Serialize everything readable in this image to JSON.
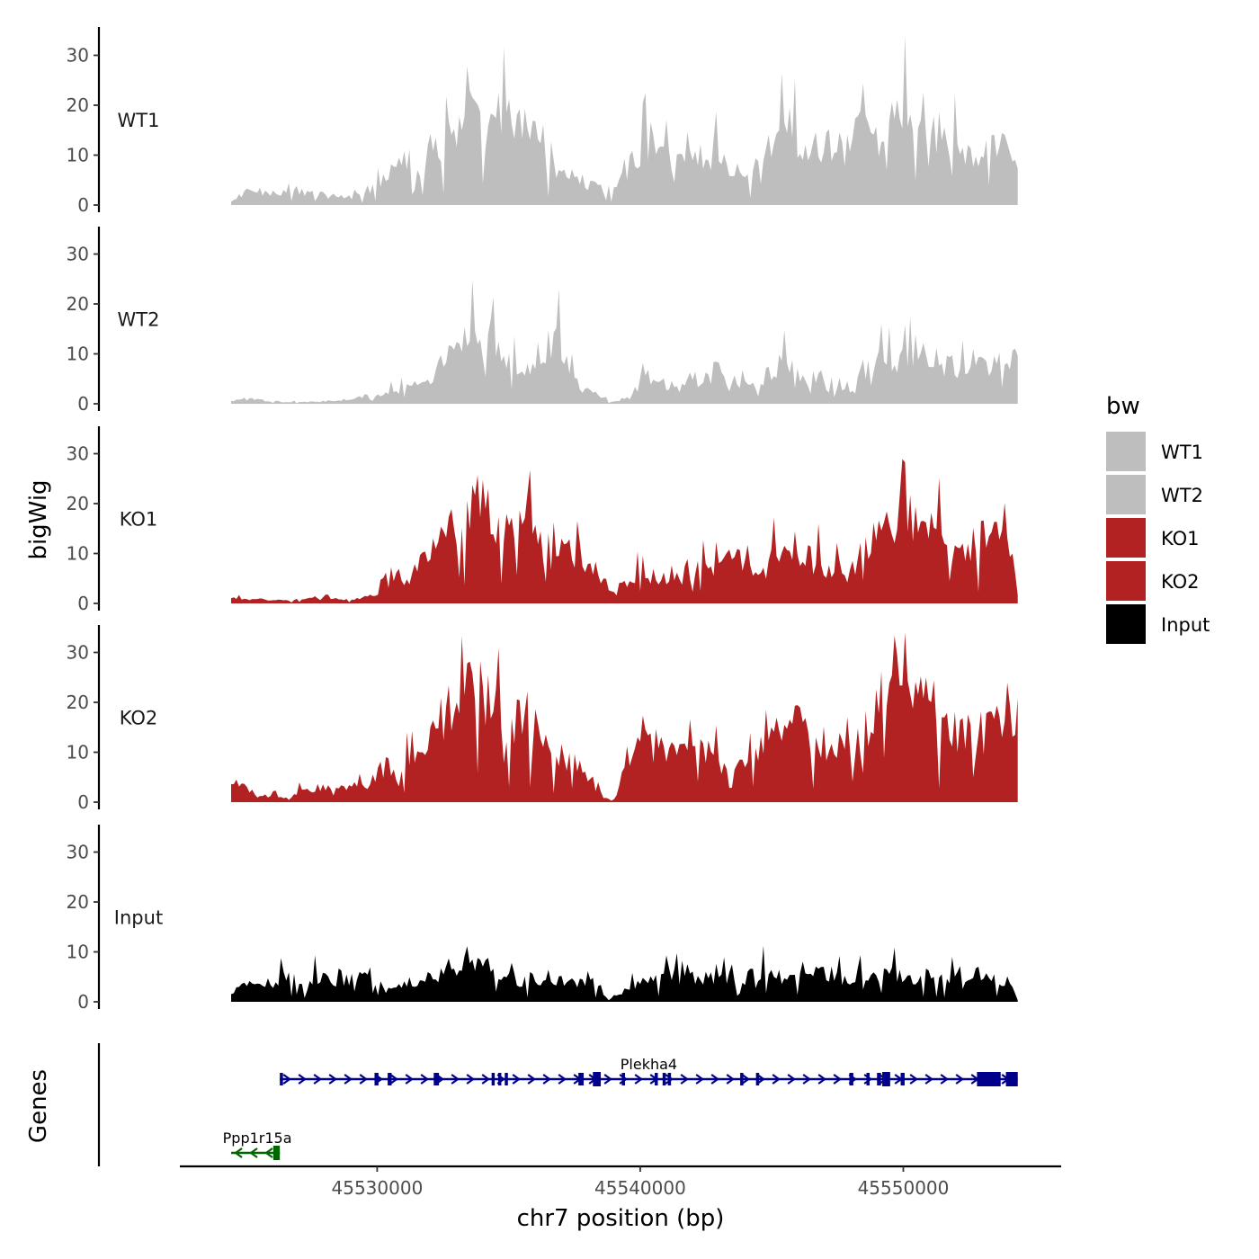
{
  "chart_data": {
    "type": "area",
    "chromosome": "chr7",
    "xlabel": "chr7 position (bp)",
    "ylabel": "bigWig",
    "genes_label": "Genes",
    "xlim": [
      45522500,
      45556000
    ],
    "data_x_range": [
      45524450,
      45554350
    ],
    "xticks": [
      45530000,
      45540000,
      45550000
    ],
    "xtick_labels": [
      "45530000",
      "45540000",
      "45550000"
    ],
    "ylim": [
      0,
      36
    ],
    "yticks": [
      0,
      10,
      20,
      30
    ],
    "ytick_labels": [
      "0",
      "10",
      "20",
      "30"
    ],
    "legend": {
      "title": "bw",
      "position": "right",
      "entries": [
        {
          "label": "WT1",
          "color": "#BEBEBE"
        },
        {
          "label": "WT2",
          "color": "#BEBEBE"
        },
        {
          "label": "KO1",
          "color": "#B22222"
        },
        {
          "label": "KO2",
          "color": "#B22222"
        },
        {
          "label": "Input",
          "color": "#000000"
        }
      ]
    },
    "series": [
      {
        "name": "WT1",
        "color": "#BEBEBE",
        "anchors": [
          [
            45524450,
            0.5
          ],
          [
            45525000,
            3
          ],
          [
            45526000,
            2.5
          ],
          [
            45527000,
            3
          ],
          [
            45528000,
            2
          ],
          [
            45529000,
            1.5
          ],
          [
            45530000,
            4
          ],
          [
            45530500,
            8
          ],
          [
            45531000,
            11
          ],
          [
            45531500,
            7
          ],
          [
            45532000,
            11
          ],
          [
            45532500,
            13
          ],
          [
            45533000,
            16
          ],
          [
            45533500,
            24
          ],
          [
            45533800,
            16
          ],
          [
            45534200,
            13
          ],
          [
            45534600,
            18
          ],
          [
            45535200,
            17
          ],
          [
            45535800,
            15
          ],
          [
            45536300,
            13
          ],
          [
            45536800,
            8
          ],
          [
            45537500,
            6
          ],
          [
            45538000,
            4
          ],
          [
            45538600,
            5
          ],
          [
            45539000,
            2
          ],
          [
            45539600,
            8
          ],
          [
            45540200,
            12
          ],
          [
            45541000,
            9
          ],
          [
            45541800,
            10
          ],
          [
            45542600,
            11
          ],
          [
            45543400,
            8
          ],
          [
            45544200,
            6
          ],
          [
            45545000,
            12
          ],
          [
            45545600,
            16
          ],
          [
            45546200,
            11
          ],
          [
            45547000,
            12
          ],
          [
            45547800,
            11
          ],
          [
            45548400,
            15
          ],
          [
            45549000,
            12
          ],
          [
            45549600,
            17
          ],
          [
            45550100,
            22
          ],
          [
            45550600,
            19
          ],
          [
            45551200,
            16
          ],
          [
            45551800,
            13
          ],
          [
            45552400,
            10
          ],
          [
            45553000,
            10
          ],
          [
            45553600,
            12
          ],
          [
            45554350,
            11
          ]
        ]
      },
      {
        "name": "WT2",
        "color": "#BEBEBE",
        "anchors": [
          [
            45524450,
            0.5
          ],
          [
            45525000,
            1
          ],
          [
            45526000,
            0.5
          ],
          [
            45527000,
            0.3
          ],
          [
            45528000,
            0.5
          ],
          [
            45529000,
            1
          ],
          [
            45530000,
            2
          ],
          [
            45530500,
            3
          ],
          [
            45531000,
            3
          ],
          [
            45532000,
            5
          ],
          [
            45532500,
            8
          ],
          [
            45533000,
            12
          ],
          [
            45533500,
            15
          ],
          [
            45534000,
            12
          ],
          [
            45534600,
            11
          ],
          [
            45535200,
            9
          ],
          [
            45535800,
            7
          ],
          [
            45536300,
            12
          ],
          [
            45536800,
            13
          ],
          [
            45537300,
            9
          ],
          [
            45537800,
            3
          ],
          [
            45538400,
            2
          ],
          [
            45538800,
            0.3
          ],
          [
            45539200,
            0.5
          ],
          [
            45539800,
            3
          ],
          [
            45540300,
            6
          ],
          [
            45541000,
            4
          ],
          [
            45541800,
            5
          ],
          [
            45542600,
            5
          ],
          [
            45543400,
            5
          ],
          [
            45544200,
            3
          ],
          [
            45544800,
            6
          ],
          [
            45545600,
            9
          ],
          [
            45546200,
            5
          ],
          [
            45547000,
            6
          ],
          [
            45547600,
            4
          ],
          [
            45548200,
            3
          ],
          [
            45548800,
            8
          ],
          [
            45549500,
            9
          ],
          [
            45550000,
            9
          ],
          [
            45550500,
            11
          ],
          [
            45551000,
            11
          ],
          [
            45551600,
            8
          ],
          [
            45552200,
            7
          ],
          [
            45552800,
            9
          ],
          [
            45553400,
            8
          ],
          [
            45554350,
            9
          ]
        ]
      },
      {
        "name": "KO1",
        "color": "#B22222",
        "anchors": [
          [
            45524450,
            1
          ],
          [
            45525000,
            1
          ],
          [
            45526000,
            0.7
          ],
          [
            45527000,
            0.8
          ],
          [
            45528000,
            1
          ],
          [
            45529000,
            0.8
          ],
          [
            45530000,
            2
          ],
          [
            45530300,
            6
          ],
          [
            45530800,
            7
          ],
          [
            45531200,
            4
          ],
          [
            45531600,
            8
          ],
          [
            45532200,
            11
          ],
          [
            45532700,
            14
          ],
          [
            45533200,
            19
          ],
          [
            45533700,
            22
          ],
          [
            45534200,
            19
          ],
          [
            45534600,
            17
          ],
          [
            45535000,
            18
          ],
          [
            45535500,
            20
          ],
          [
            45536000,
            16
          ],
          [
            45536500,
            8
          ],
          [
            45537000,
            10
          ],
          [
            45537500,
            11
          ],
          [
            45538000,
            8
          ],
          [
            45538500,
            6
          ],
          [
            45539000,
            2
          ],
          [
            45539500,
            4
          ],
          [
            45540000,
            6
          ],
          [
            45540600,
            6
          ],
          [
            45541200,
            5
          ],
          [
            45541800,
            6
          ],
          [
            45542600,
            8
          ],
          [
            45543400,
            9
          ],
          [
            45544000,
            8
          ],
          [
            45544600,
            6
          ],
          [
            45545200,
            10
          ],
          [
            45545800,
            13
          ],
          [
            45546500,
            9
          ],
          [
            45547000,
            8
          ],
          [
            45547500,
            7
          ],
          [
            45548000,
            6
          ],
          [
            45548500,
            13
          ],
          [
            45549000,
            15
          ],
          [
            45549600,
            16
          ],
          [
            45550000,
            17
          ],
          [
            45550500,
            18
          ],
          [
            45551000,
            16
          ],
          [
            45551700,
            13
          ],
          [
            45552200,
            10
          ],
          [
            45552800,
            14
          ],
          [
            45553400,
            14
          ],
          [
            45554000,
            16
          ],
          [
            45554350,
            2
          ]
        ]
      },
      {
        "name": "KO2",
        "color": "#B22222",
        "anchors": [
          [
            45524450,
            4
          ],
          [
            45525000,
            3
          ],
          [
            45525500,
            1
          ],
          [
            45526000,
            1.5
          ],
          [
            45526600,
            0.5
          ],
          [
            45527200,
            3
          ],
          [
            45528000,
            3
          ],
          [
            45529000,
            3
          ],
          [
            45529800,
            4
          ],
          [
            45530300,
            8
          ],
          [
            45530800,
            4
          ],
          [
            45531300,
            11
          ],
          [
            45532000,
            15
          ],
          [
            45532500,
            18
          ],
          [
            45533000,
            20
          ],
          [
            45533500,
            23
          ],
          [
            45534000,
            22
          ],
          [
            45534600,
            19
          ],
          [
            45535200,
            18
          ],
          [
            45535800,
            17
          ],
          [
            45536400,
            12
          ],
          [
            45537000,
            10
          ],
          [
            45537600,
            8
          ],
          [
            45538200,
            4
          ],
          [
            45538600,
            1
          ],
          [
            45539000,
            0.5
          ],
          [
            45539400,
            6
          ],
          [
            45540000,
            12
          ],
          [
            45540600,
            10
          ],
          [
            45541200,
            11
          ],
          [
            45541800,
            10
          ],
          [
            45542600,
            10
          ],
          [
            45543400,
            7
          ],
          [
            45544000,
            8
          ],
          [
            45544600,
            11
          ],
          [
            45545200,
            14
          ],
          [
            45545800,
            18
          ],
          [
            45546400,
            13
          ],
          [
            45547000,
            12
          ],
          [
            45547800,
            11
          ],
          [
            45548500,
            15
          ],
          [
            45549000,
            18
          ],
          [
            45549500,
            25
          ],
          [
            45550000,
            28
          ],
          [
            45550600,
            27
          ],
          [
            45551100,
            20
          ],
          [
            45551600,
            15
          ],
          [
            45552200,
            14
          ],
          [
            45552800,
            14
          ],
          [
            45553500,
            15
          ],
          [
            45554350,
            17
          ]
        ]
      },
      {
        "name": "Input",
        "color": "#000000",
        "anchors": [
          [
            45524450,
            2
          ],
          [
            45525000,
            5
          ],
          [
            45525500,
            3
          ],
          [
            45526000,
            4
          ],
          [
            45526500,
            5
          ],
          [
            45527000,
            4
          ],
          [
            45527500,
            5
          ],
          [
            45528000,
            5
          ],
          [
            45528500,
            4
          ],
          [
            45529000,
            5
          ],
          [
            45529500,
            5
          ],
          [
            45530000,
            4
          ],
          [
            45530500,
            2
          ],
          [
            45531000,
            4
          ],
          [
            45531500,
            4
          ],
          [
            45532000,
            5
          ],
          [
            45532500,
            6
          ],
          [
            45533000,
            8
          ],
          [
            45533500,
            7
          ],
          [
            45534000,
            8
          ],
          [
            45534500,
            6
          ],
          [
            45535000,
            5
          ],
          [
            45535500,
            4
          ],
          [
            45536000,
            5
          ],
          [
            45536500,
            4
          ],
          [
            45537000,
            5
          ],
          [
            45537500,
            4
          ],
          [
            45538000,
            5
          ],
          [
            45538500,
            3
          ],
          [
            45538800,
            0.3
          ],
          [
            45539200,
            2
          ],
          [
            45540000,
            4
          ],
          [
            45540500,
            4
          ],
          [
            45541000,
            6
          ],
          [
            45541500,
            5
          ],
          [
            45542000,
            5
          ],
          [
            45542500,
            5
          ],
          [
            45543000,
            5
          ],
          [
            45543500,
            6
          ],
          [
            45544000,
            5
          ],
          [
            45544500,
            6
          ],
          [
            45545000,
            6
          ],
          [
            45545500,
            5
          ],
          [
            45546000,
            5
          ],
          [
            45546500,
            6
          ],
          [
            45547000,
            6
          ],
          [
            45547500,
            5
          ],
          [
            45548000,
            5
          ],
          [
            45548500,
            6
          ],
          [
            45549000,
            5
          ],
          [
            45549500,
            6
          ],
          [
            45550000,
            6
          ],
          [
            45550500,
            5
          ],
          [
            45551000,
            6
          ],
          [
            45551500,
            5
          ],
          [
            45552000,
            6
          ],
          [
            45552500,
            5
          ],
          [
            45553000,
            6
          ],
          [
            45553500,
            5
          ],
          [
            45554000,
            4
          ],
          [
            45554350,
            0.3
          ]
        ]
      }
    ],
    "genes": [
      {
        "name": "Plekha4",
        "strand": "+",
        "color": "#00008B",
        "row": 1,
        "start": 45526300,
        "end": 45554350,
        "exons": [
          [
            45526300,
            45526400
          ],
          [
            45529900,
            45530050
          ],
          [
            45530400,
            45530550
          ],
          [
            45532150,
            45532350
          ],
          [
            45534350,
            45534450
          ],
          [
            45534600,
            45534700
          ],
          [
            45534850,
            45534950
          ],
          [
            45537650,
            45537850
          ],
          [
            45538200,
            45538500
          ],
          [
            45539300,
            45539400
          ],
          [
            45540550,
            45540650
          ],
          [
            45540850,
            45540950
          ],
          [
            45541050,
            45541150
          ],
          [
            45543800,
            45543900
          ],
          [
            45544400,
            45544500
          ],
          [
            45547950,
            45548100
          ],
          [
            45548600,
            45548700
          ],
          [
            45549000,
            45549150
          ],
          [
            45549200,
            45549500
          ],
          [
            45549900,
            45550050
          ],
          [
            45552800,
            45553700
          ],
          [
            45553900,
            45554350
          ]
        ]
      },
      {
        "name": "Ppp1r15a",
        "strand": "-",
        "color": "#006400",
        "row": 2,
        "start": 45524450,
        "end": 45526300,
        "exons": [
          [
            45526050,
            45526300
          ]
        ]
      }
    ]
  }
}
